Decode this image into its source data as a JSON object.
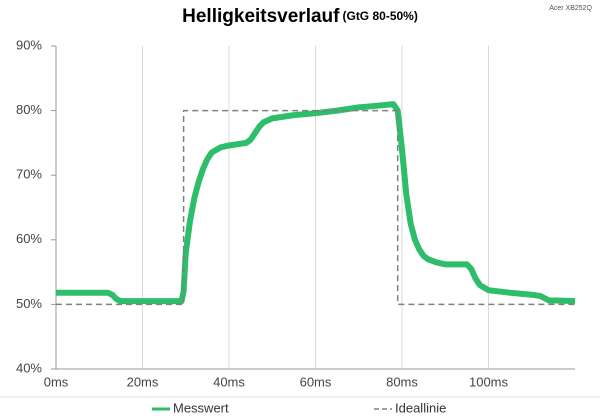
{
  "chart_data": {
    "type": "line",
    "title": "Helligkeitsverlauf",
    "subtitle": "(GtG 80-50%)",
    "annotation": "Acer XB252Q",
    "xlim": [
      0,
      120
    ],
    "xticks": [
      {
        "value": 0,
        "label": "0ms"
      },
      {
        "value": 20,
        "label": "20ms"
      },
      {
        "value": 40,
        "label": "40ms"
      },
      {
        "value": 60,
        "label": "60ms"
      },
      {
        "value": 80,
        "label": "80ms"
      },
      {
        "value": 100,
        "label": "100ms"
      }
    ],
    "ylim": [
      40,
      90
    ],
    "yticks": [
      {
        "value": 40,
        "label": "40%"
      },
      {
        "value": 50,
        "label": "50%"
      },
      {
        "value": 60,
        "label": "60%"
      },
      {
        "value": 70,
        "label": "70%"
      },
      {
        "value": 80,
        "label": "80%"
      },
      {
        "value": 90,
        "label": "90%"
      }
    ],
    "grid": "vertical",
    "legend": "bottom",
    "series": [
      {
        "name": "Messwert",
        "color": "#2ebd6b",
        "dash": false,
        "x": [
          0,
          5,
          10,
          12,
          13,
          14,
          15,
          20,
          25,
          28,
          29,
          29.5,
          30,
          31,
          32,
          33,
          34,
          35,
          36,
          38,
          40,
          42,
          44,
          45,
          46,
          47,
          48,
          50,
          55,
          60,
          65,
          70,
          75,
          78,
          79,
          80,
          81,
          82,
          83,
          84,
          85,
          86,
          88,
          90,
          95,
          96,
          97,
          98,
          100,
          105,
          110,
          112,
          114,
          116,
          120
        ],
        "values": [
          51.8,
          51.8,
          51.8,
          51.8,
          51.5,
          50.8,
          50.5,
          50.5,
          50.5,
          50.5,
          50.5,
          52,
          58,
          63,
          66.5,
          69,
          71,
          72.5,
          73.5,
          74.3,
          74.6,
          74.8,
          75,
          75.5,
          76.5,
          77.5,
          78.2,
          78.8,
          79.3,
          79.6,
          80,
          80.5,
          80.8,
          81,
          80,
          74,
          67,
          62.5,
          60,
          58.5,
          57.5,
          57,
          56.5,
          56.2,
          56.2,
          55.5,
          54,
          53,
          52.2,
          51.8,
          51.5,
          51.3,
          50.6,
          50.6,
          50.5
        ]
      },
      {
        "name": "Ideallinie",
        "color": "#808080",
        "dash": true,
        "x": [
          0,
          29.5,
          29.5,
          79,
          79,
          120
        ],
        "values": [
          50,
          50,
          80,
          80,
          50,
          50
        ]
      }
    ]
  }
}
